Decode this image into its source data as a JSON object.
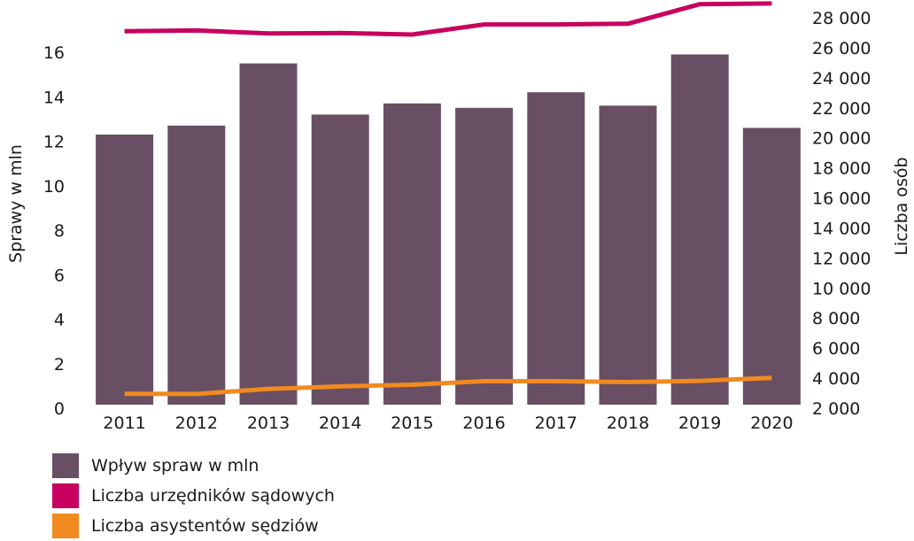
{
  "chart_data": {
    "type": "bar",
    "categories": [
      "2011",
      "2012",
      "2013",
      "2014",
      "2015",
      "2016",
      "2017",
      "2018",
      "2019",
      "2020"
    ],
    "series": [
      {
        "name": "Wpływ spraw w mln",
        "chart_type": "bar",
        "axis": "left",
        "color": "#684f63",
        "values": [
          12.3,
          12.7,
          15.5,
          13.2,
          13.7,
          13.5,
          14.2,
          13.6,
          15.9,
          12.6
        ]
      },
      {
        "name": "Liczba urzędników sądowych",
        "chart_type": "line",
        "axis": "right",
        "color": "#c8005f",
        "values": [
          27100,
          27150,
          26950,
          26980,
          26880,
          27550,
          27550,
          27600,
          28900,
          28950
        ]
      },
      {
        "name": "Liczba asystentów sędziów",
        "chart_type": "line",
        "axis": "right",
        "color": "#f28a20",
        "values": [
          2960,
          2950,
          3280,
          3450,
          3560,
          3800,
          3800,
          3740,
          3820,
          4020
        ]
      }
    ],
    "ylabel": "Sprawy w mln",
    "ylim": [
      0,
      16
    ],
    "yticks": [
      "0",
      "2",
      "4",
      "6",
      "8",
      "10",
      "12",
      "14",
      "16"
    ],
    "y2label": "Liczba osób",
    "y2lim": [
      2000,
      28000
    ],
    "y2ticks": [
      "2 000",
      "4 000",
      "6 000",
      "8 000",
      "10 000",
      "12 000",
      "14 000",
      "16 000",
      "18 000",
      "20 000",
      "22 000",
      "24 000",
      "26 000",
      "28 000"
    ],
    "grid": false,
    "legend_position": "bottom-left"
  }
}
